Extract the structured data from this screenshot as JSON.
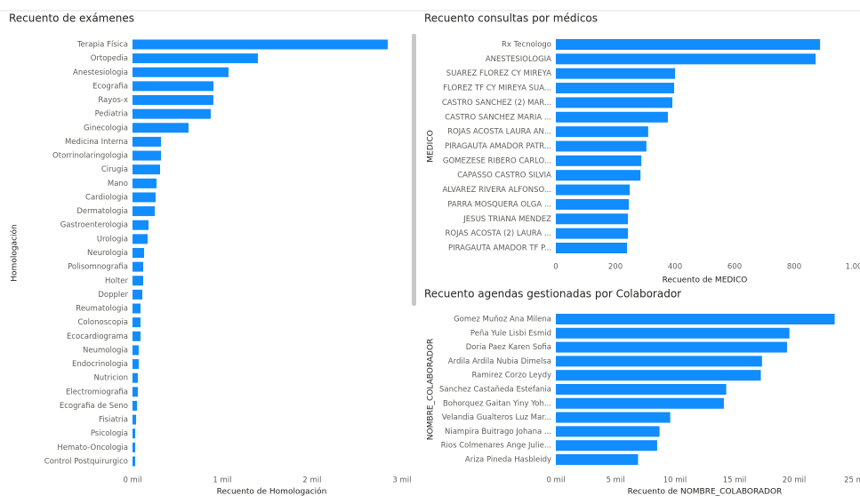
{
  "chart_data": [
    {
      "type": "bar",
      "orientation": "horizontal",
      "title": "Recuento de exámenes",
      "x_label": "Recuento de Homologación",
      "y_label": "Homologación",
      "color": "#118dff",
      "categories": [
        "Terapia Física",
        "Ortopedia",
        "Anestesiologia",
        "Ecografia",
        "Rayos-x",
        "Pediatria",
        "Ginecologia",
        "Medicina Interna",
        "Otorrinolaringologia",
        "Cirugia",
        "Mano",
        "Cardiologia",
        "Dermatologia",
        "Gastroenterologia",
        "Urologia",
        "Neurologia",
        "Polisomnografia",
        "Holter",
        "Doppler",
        "Reumatologia",
        "Colonoscopia",
        "Ecocardiograma",
        "Neumologia",
        "Endocrinologia",
        "Nutricion",
        "Electromiografia",
        "Ecografia de Seno",
        "Fisiatria",
        "Psicologia",
        "Hemato-Oncologia",
        "Control Postquirurgico"
      ],
      "values": [
        2842,
        1396,
        1069,
        901,
        900,
        871,
        624,
        317,
        317,
        307,
        267,
        257,
        248,
        178,
        168,
        129,
        119,
        119,
        109,
        89,
        89,
        89,
        69,
        69,
        59,
        59,
        50,
        40,
        30,
        30,
        30
      ],
      "xlim": [
        0,
        3100
      ],
      "xticks": [
        {
          "value": 0,
          "label": "0 mil"
        },
        {
          "value": 1000,
          "label": "1 mil"
        },
        {
          "value": 2000,
          "label": "2 mil"
        },
        {
          "value": 3000,
          "label": "3 mil"
        }
      ]
    },
    {
      "type": "bar",
      "orientation": "horizontal",
      "title": "Recuento consultas por médicos",
      "x_label": "Recuento de MEDICO",
      "y_label": "MEDICO",
      "color": "#118dff",
      "categories": [
        "Rx Tecnologo",
        "ANESTESIOLOGIA",
        "SUAREZ FLOREZ CY MIREYA",
        "FLOREZ TF CY MIREYA SUA...",
        "CASTRO SANCHEZ (2) MAR...",
        "CASTRO SANCHEZ MARIA ...",
        "ROJAS ACOSTA LAURA AN...",
        "PIRAGAUTA AMADOR PATR...",
        "GOMEZESE RIBERO CARLO...",
        "CAPASSO CASTRO SILVIA",
        "ALVAREZ RIVERA ALFONSO...",
        "PARRA MOSQUERA OLGA ...",
        "JESUS TRIANA MENDEZ",
        "ROJAS ACOSTA (2) LAURA ...",
        "PIRAGAUTA AMADOR TF P..."
      ],
      "values": [
        887,
        872,
        400,
        397,
        391,
        376,
        310,
        304,
        287,
        284,
        248,
        245,
        242,
        242,
        239
      ],
      "xlim": [
        0,
        1000
      ],
      "xticks": [
        0,
        200,
        400,
        600,
        800,
        {
          "value": 1000,
          "label": "1.00"
        }
      ]
    },
    {
      "type": "bar",
      "orientation": "horizontal",
      "title": "Recuento agendas gestionadas por Colaborador",
      "x_label": "Recuento de NOMBRE_COLABORADOR",
      "y_label": "NOMBRE_COLABORADOR",
      "color": "#118dff",
      "categories": [
        "Gomez Muñoz Ana Milena",
        "Peña Yule Lisbi Esmid",
        "Doria Paez Karen Sofia",
        "Ardila Ardila Nubia Dimelsa",
        "Ramirez Corzo Leydy",
        "Sanchez Castañeda Estefania",
        "Bohorquez Gaitan Yiny Yoh...",
        "Velandia Gualteros Luz Mar...",
        "Niampira Buitrago Johana ...",
        "Rios Colmenares Ange Julie...",
        "Ariza Pineda Hasbleidy"
      ],
      "values": [
        23400,
        19600,
        19400,
        17300,
        17200,
        14300,
        14100,
        9600,
        8700,
        8500,
        6900
      ],
      "xlim": [
        0,
        25000
      ],
      "xticks": [
        {
          "value": 0,
          "label": "0 mil"
        },
        {
          "value": 5000,
          "label": "5 mil"
        },
        {
          "value": 10000,
          "label": "10 mil"
        },
        {
          "value": 15000,
          "label": "15 mil"
        },
        {
          "value": 20000,
          "label": "20 mil"
        },
        {
          "value": 25000,
          "label": "25 m"
        }
      ]
    }
  ]
}
